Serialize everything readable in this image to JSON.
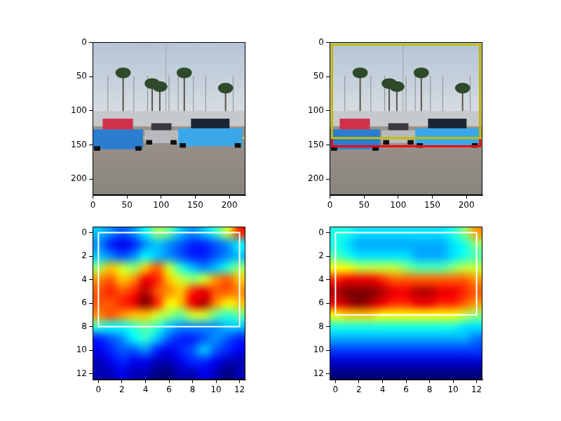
{
  "chart_data": [
    {
      "type": "image",
      "xlim": [
        -0.5,
        223.5
      ],
      "ylim": [
        223.5,
        -0.5
      ],
      "xticks": [
        0,
        50,
        100,
        150,
        200
      ],
      "yticks": [
        0,
        50,
        100,
        150,
        200
      ],
      "grid": false
    },
    {
      "type": "image",
      "xlim": [
        -0.5,
        223.5
      ],
      "ylim": [
        223.5,
        -0.5
      ],
      "xticks": [
        0,
        50,
        100,
        150,
        200
      ],
      "yticks": [
        0,
        50,
        100,
        150,
        200
      ],
      "grid": false,
      "boxes": [
        {
          "x": [
            3,
            220
          ],
          "y": [
            3,
            152
          ],
          "color": "#ff0000"
        },
        {
          "x": [
            3,
            220
          ],
          "y": [
            3,
            140
          ],
          "color": "#bfbf00"
        }
      ]
    },
    {
      "type": "heatmap",
      "xlim": [
        -0.5,
        12.5
      ],
      "ylim": [
        12.5,
        -0.5
      ],
      "xticks": [
        0,
        2,
        4,
        6,
        8,
        10,
        12
      ],
      "yticks": [
        0,
        2,
        4,
        6,
        8,
        10,
        12
      ],
      "grid": false,
      "cells": [
        [
          0.35,
          0.3,
          0.25,
          0.3,
          0.4,
          0.55,
          0.5,
          0.35,
          0.3,
          0.35,
          0.45,
          0.6,
          0.85
        ],
        [
          0.3,
          0.2,
          0.15,
          0.2,
          0.3,
          0.35,
          0.3,
          0.25,
          0.2,
          0.2,
          0.25,
          0.3,
          0.4
        ],
        [
          0.35,
          0.3,
          0.25,
          0.3,
          0.4,
          0.35,
          0.3,
          0.25,
          0.2,
          0.2,
          0.25,
          0.3,
          0.35
        ],
        [
          0.55,
          0.7,
          0.6,
          0.55,
          0.7,
          0.8,
          0.6,
          0.45,
          0.35,
          0.3,
          0.35,
          0.45,
          0.55
        ],
        [
          0.75,
          0.8,
          0.7,
          0.75,
          0.9,
          0.85,
          0.7,
          0.6,
          0.55,
          0.6,
          0.75,
          0.8,
          0.7
        ],
        [
          0.8,
          0.85,
          0.8,
          0.85,
          0.95,
          0.8,
          0.75,
          0.7,
          0.85,
          0.9,
          0.8,
          0.8,
          0.75
        ],
        [
          0.8,
          0.8,
          0.85,
          0.9,
          1.0,
          0.85,
          0.65,
          0.7,
          0.9,
          0.95,
          0.75,
          0.65,
          0.7
        ],
        [
          0.75,
          0.8,
          0.75,
          0.7,
          0.7,
          0.6,
          0.55,
          0.5,
          0.6,
          0.6,
          0.5,
          0.45,
          0.5
        ],
        [
          0.45,
          0.4,
          0.4,
          0.45,
          0.5,
          0.45,
          0.35,
          0.3,
          0.3,
          0.3,
          0.3,
          0.35,
          0.35
        ],
        [
          0.2,
          0.25,
          0.3,
          0.4,
          0.45,
          0.35,
          0.25,
          0.2,
          0.2,
          0.25,
          0.3,
          0.25,
          0.2
        ],
        [
          0.15,
          0.2,
          0.25,
          0.25,
          0.3,
          0.2,
          0.15,
          0.2,
          0.25,
          0.35,
          0.25,
          0.2,
          0.15
        ],
        [
          0.1,
          0.15,
          0.2,
          0.15,
          0.15,
          0.1,
          0.1,
          0.15,
          0.2,
          0.2,
          0.15,
          0.1,
          0.1
        ],
        [
          0.1,
          0.1,
          0.15,
          0.1,
          0.1,
          0.05,
          0.05,
          0.1,
          0.1,
          0.15,
          0.1,
          0.05,
          0.1
        ]
      ],
      "boxes": [
        {
          "x": [
            0,
            12
          ],
          "y": [
            0,
            8
          ],
          "color": "#ffffff"
        }
      ]
    },
    {
      "type": "heatmap",
      "xlim": [
        -0.5,
        12.5
      ],
      "ylim": [
        12.5,
        -0.5
      ],
      "xticks": [
        0,
        2,
        4,
        6,
        8,
        10,
        12
      ],
      "yticks": [
        0,
        2,
        4,
        6,
        8,
        10,
        12
      ],
      "grid": false,
      "cells": [
        [
          0.4,
          0.4,
          0.35,
          0.35,
          0.35,
          0.35,
          0.35,
          0.35,
          0.35,
          0.35,
          0.4,
          0.5,
          0.7
        ],
        [
          0.4,
          0.35,
          0.3,
          0.3,
          0.3,
          0.3,
          0.3,
          0.3,
          0.3,
          0.3,
          0.35,
          0.4,
          0.5
        ],
        [
          0.45,
          0.4,
          0.35,
          0.35,
          0.35,
          0.35,
          0.35,
          0.3,
          0.3,
          0.3,
          0.35,
          0.4,
          0.45
        ],
        [
          0.6,
          0.6,
          0.55,
          0.55,
          0.55,
          0.55,
          0.5,
          0.45,
          0.45,
          0.45,
          0.5,
          0.55,
          0.55
        ],
        [
          0.8,
          0.85,
          0.85,
          0.85,
          0.8,
          0.75,
          0.75,
          0.75,
          0.75,
          0.75,
          0.75,
          0.75,
          0.7
        ],
        [
          0.9,
          0.95,
          0.95,
          0.95,
          0.9,
          0.85,
          0.85,
          0.9,
          0.9,
          0.85,
          0.85,
          0.8,
          0.75
        ],
        [
          0.85,
          0.9,
          0.95,
          0.9,
          0.85,
          0.8,
          0.8,
          0.85,
          0.85,
          0.8,
          0.8,
          0.75,
          0.7
        ],
        [
          0.6,
          0.65,
          0.65,
          0.65,
          0.6,
          0.6,
          0.6,
          0.6,
          0.6,
          0.6,
          0.6,
          0.55,
          0.5
        ],
        [
          0.4,
          0.4,
          0.4,
          0.4,
          0.4,
          0.4,
          0.4,
          0.4,
          0.4,
          0.4,
          0.4,
          0.35,
          0.35
        ],
        [
          0.3,
          0.3,
          0.3,
          0.3,
          0.3,
          0.3,
          0.3,
          0.3,
          0.3,
          0.3,
          0.3,
          0.3,
          0.25
        ],
        [
          0.2,
          0.2,
          0.2,
          0.2,
          0.2,
          0.2,
          0.2,
          0.2,
          0.2,
          0.2,
          0.2,
          0.2,
          0.2
        ],
        [
          0.1,
          0.1,
          0.1,
          0.1,
          0.1,
          0.1,
          0.1,
          0.1,
          0.1,
          0.1,
          0.1,
          0.1,
          0.1
        ],
        [
          0.03,
          0.03,
          0.03,
          0.03,
          0.03,
          0.03,
          0.03,
          0.03,
          0.03,
          0.03,
          0.03,
          0.03,
          0.03
        ]
      ],
      "boxes": [
        {
          "x": [
            0,
            12
          ],
          "y": [
            0,
            7
          ],
          "color": "#ffffff"
        }
      ]
    }
  ]
}
